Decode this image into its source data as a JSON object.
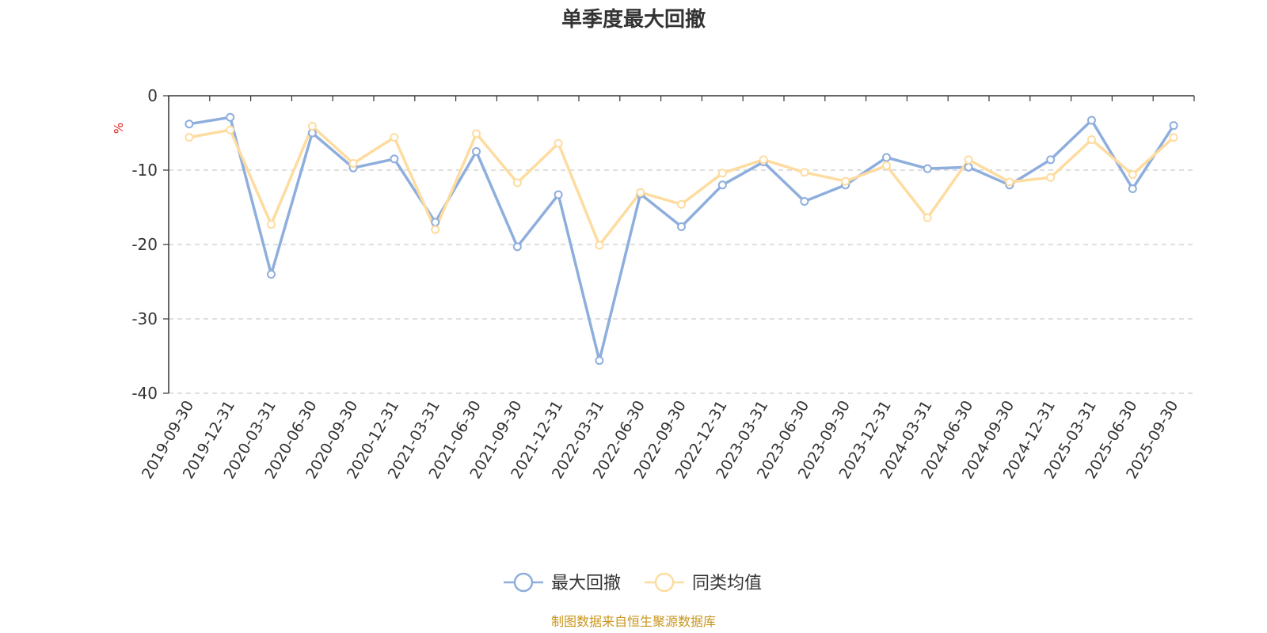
{
  "chart_data": {
    "type": "line",
    "title": "单季度最大回撤",
    "ylabel": "%",
    "ylim": [
      -40,
      0
    ],
    "yticks": [
      0,
      -10,
      -20,
      -30,
      -40
    ],
    "grid": true,
    "legend_position": "bottom",
    "categories": [
      "2019-09-30",
      "2019-12-31",
      "2020-03-31",
      "2020-06-30",
      "2020-09-30",
      "2020-12-31",
      "2021-03-31",
      "2021-06-30",
      "2021-09-30",
      "2021-12-31",
      "2022-03-31",
      "2022-06-30",
      "2022-09-30",
      "2022-12-31",
      "2023-03-31",
      "2023-06-30",
      "2023-09-30",
      "2023-12-31",
      "2024-03-31",
      "2024-06-30",
      "2024-09-30",
      "2024-12-31",
      "2025-03-31",
      "2025-06-30",
      "2025-09-30"
    ],
    "series": [
      {
        "name": "最大回撤",
        "color": "#8eaedd",
        "values": [
          -3.8,
          -2.9,
          -24.0,
          -5.0,
          -9.7,
          -8.5,
          -17.0,
          -7.5,
          -20.3,
          -13.3,
          -35.6,
          -13.2,
          -17.6,
          -12.0,
          -8.9,
          -14.2,
          -12.0,
          -8.3,
          -9.8,
          -9.6,
          -12.0,
          -8.6,
          -3.3,
          -12.5,
          -4.0
        ]
      },
      {
        "name": "同类均值",
        "color": "#fedca0",
        "values": [
          -5.6,
          -4.6,
          -17.3,
          -4.1,
          -9.1,
          -5.6,
          -18.0,
          -5.1,
          -11.7,
          -6.4,
          -20.1,
          -13.0,
          -14.6,
          -10.4,
          -8.6,
          -10.3,
          -11.5,
          -9.4,
          -16.4,
          -8.6,
          -11.6,
          -11.0,
          -5.9,
          -10.6,
          -5.6
        ]
      }
    ]
  },
  "source": {
    "text": "制图数据来自恒生聚源数据库",
    "color": "#c8961e"
  },
  "colors": {
    "unit_label": "#e02020",
    "axis": "#333333",
    "grid": "#cccccc"
  }
}
